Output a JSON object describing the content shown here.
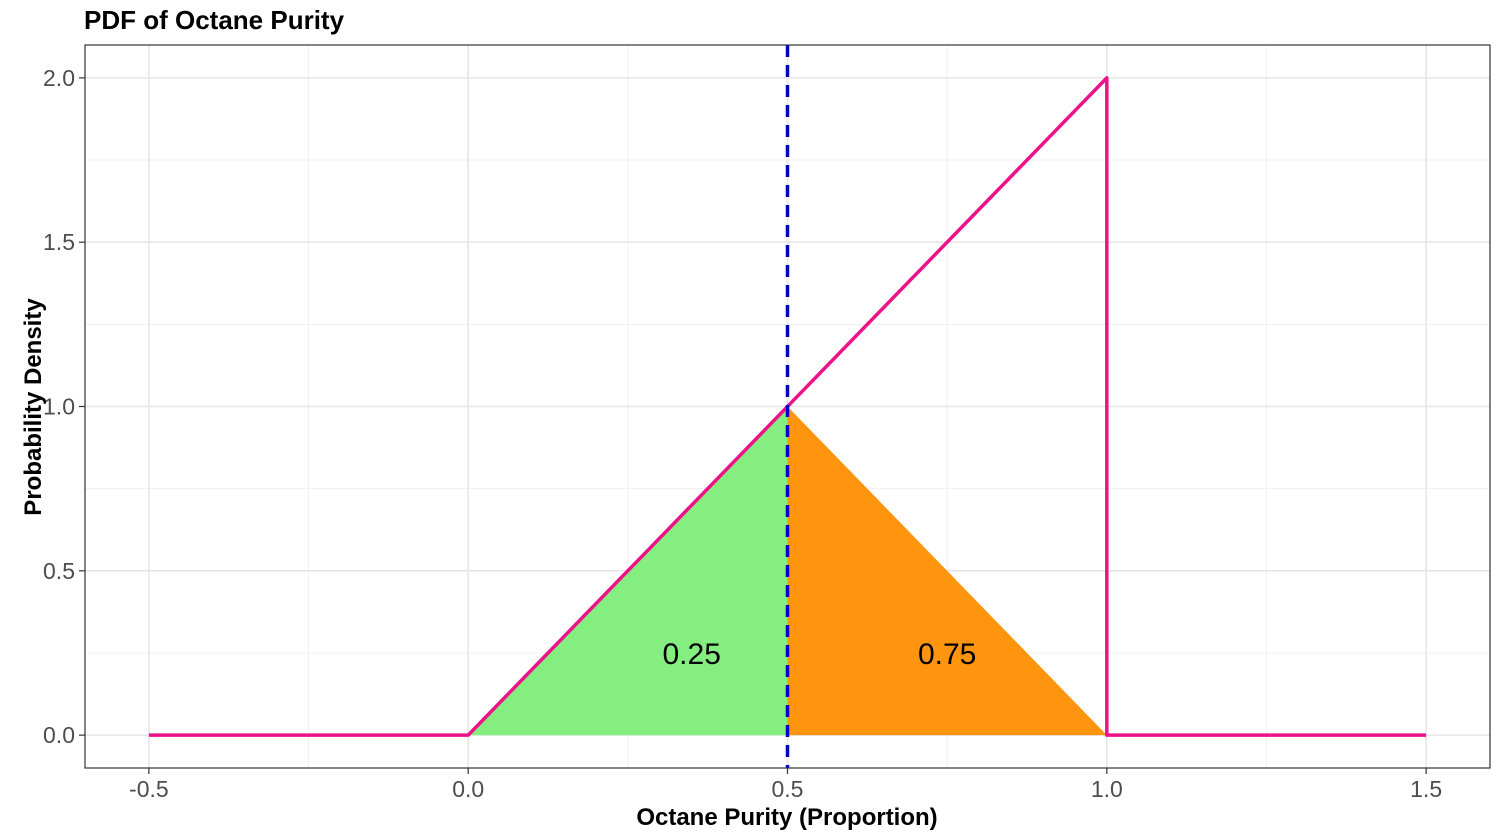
{
  "chart_data": {
    "type": "line",
    "title": "PDF of Octane Purity",
    "xlabel": "Octane Purity (Proportion)",
    "ylabel": "Probability Density",
    "xlim": [
      -0.6,
      1.6
    ],
    "ylim": [
      -0.1,
      2.1
    ],
    "xticks": [
      -0.5,
      0.0,
      0.5,
      1.0,
      1.5
    ],
    "xtick_labels": [
      "-0.5",
      "0.0",
      "0.5",
      "1.0",
      "1.5"
    ],
    "yticks": [
      0.0,
      0.5,
      1.0,
      1.5,
      2.0
    ],
    "ytick_labels": [
      "0.0",
      "0.5",
      "1.0",
      "1.5",
      "2.0"
    ],
    "grid": true,
    "series": [
      {
        "color": "#ee1289",
        "x": [
          -0.5,
          0.0,
          1.0,
          1.0,
          1.5
        ],
        "y": [
          0.0,
          0.0,
          2.0,
          0.0,
          0.0
        ]
      }
    ],
    "shaded_regions": [
      {
        "x_from": 0.0,
        "x_to": 0.5,
        "color": "#84ee80",
        "label": "0.25",
        "label_x": 0.35,
        "label_y": 0.25
      },
      {
        "x_from": 0.5,
        "x_to": 1.0,
        "color": "#ff950e",
        "label": "0.75",
        "label_x": 0.75,
        "label_y": 0.25
      }
    ],
    "vline": {
      "x": 0.5,
      "color": "#0000c8",
      "style": "dashed"
    }
  }
}
